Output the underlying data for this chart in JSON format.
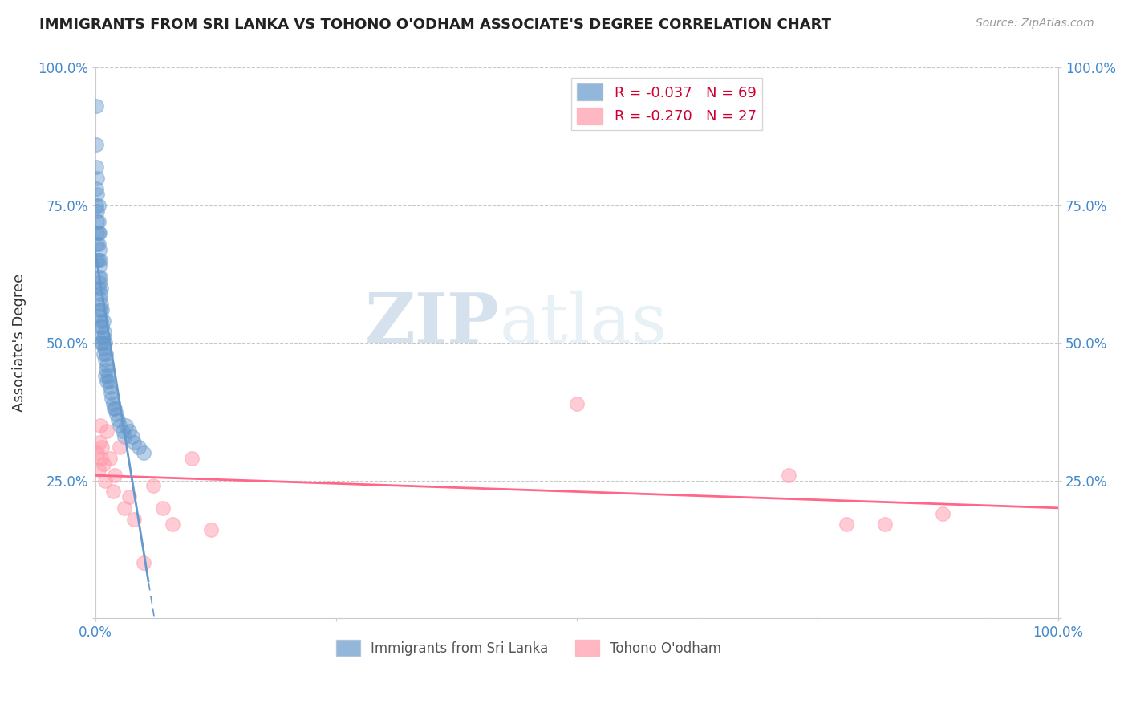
{
  "title": "IMMIGRANTS FROM SRI LANKA VS TOHONO O'ODHAM ASSOCIATE'S DEGREE CORRELATION CHART",
  "source": "Source: ZipAtlas.com",
  "ylabel": "Associate's Degree",
  "xlim": [
    0,
    1.0
  ],
  "ylim": [
    0,
    1.0
  ],
  "xticks": [
    0.0,
    0.25,
    0.5,
    0.75,
    1.0
  ],
  "xtick_labels": [
    "0.0%",
    "",
    "",
    "",
    "100.0%"
  ],
  "yticks": [
    0.0,
    0.25,
    0.5,
    0.75,
    1.0
  ],
  "ytick_labels": [
    "",
    "25.0%",
    "50.0%",
    "75.0%",
    "100.0%"
  ],
  "blue_R": -0.037,
  "blue_N": 69,
  "pink_R": -0.27,
  "pink_N": 27,
  "blue_color": "#6699CC",
  "pink_color": "#FF99AA",
  "blue_label": "Immigrants from Sri Lanka",
  "pink_label": "Tohono O'odham",
  "watermark_zip": "ZIP",
  "watermark_atlas": "atlas",
  "blue_x": [
    0.001,
    0.001,
    0.001,
    0.001,
    0.001,
    0.002,
    0.002,
    0.002,
    0.002,
    0.002,
    0.002,
    0.002,
    0.003,
    0.003,
    0.003,
    0.003,
    0.003,
    0.003,
    0.003,
    0.004,
    0.004,
    0.004,
    0.004,
    0.004,
    0.004,
    0.005,
    0.005,
    0.005,
    0.005,
    0.005,
    0.005,
    0.006,
    0.006,
    0.006,
    0.006,
    0.007,
    0.007,
    0.007,
    0.008,
    0.008,
    0.008,
    0.009,
    0.009,
    0.01,
    0.01,
    0.01,
    0.011,
    0.011,
    0.012,
    0.012,
    0.013,
    0.014,
    0.015,
    0.016,
    0.017,
    0.018,
    0.019,
    0.02,
    0.022,
    0.023,
    0.025,
    0.028,
    0.03,
    0.032,
    0.035,
    0.038,
    0.04,
    0.045,
    0.05
  ],
  "blue_y": [
    0.93,
    0.86,
    0.82,
    0.78,
    0.75,
    0.8,
    0.77,
    0.74,
    0.72,
    0.7,
    0.68,
    0.65,
    0.75,
    0.72,
    0.7,
    0.68,
    0.65,
    0.62,
    0.6,
    0.7,
    0.67,
    0.64,
    0.61,
    0.58,
    0.55,
    0.65,
    0.62,
    0.59,
    0.56,
    0.53,
    0.5,
    0.6,
    0.57,
    0.54,
    0.51,
    0.56,
    0.53,
    0.5,
    0.54,
    0.51,
    0.48,
    0.52,
    0.49,
    0.5,
    0.47,
    0.44,
    0.48,
    0.45,
    0.46,
    0.43,
    0.44,
    0.43,
    0.42,
    0.41,
    0.4,
    0.39,
    0.38,
    0.38,
    0.37,
    0.36,
    0.35,
    0.34,
    0.33,
    0.35,
    0.34,
    0.33,
    0.32,
    0.31,
    0.3
  ],
  "pink_x": [
    0.002,
    0.003,
    0.004,
    0.005,
    0.006,
    0.007,
    0.008,
    0.01,
    0.012,
    0.015,
    0.018,
    0.02,
    0.025,
    0.03,
    0.035,
    0.04,
    0.05,
    0.06,
    0.07,
    0.08,
    0.1,
    0.12,
    0.5,
    0.72,
    0.78,
    0.82,
    0.88
  ],
  "pink_y": [
    0.3,
    0.27,
    0.32,
    0.35,
    0.29,
    0.31,
    0.28,
    0.25,
    0.34,
    0.29,
    0.23,
    0.26,
    0.31,
    0.2,
    0.22,
    0.18,
    0.1,
    0.24,
    0.2,
    0.17,
    0.29,
    0.16,
    0.39,
    0.26,
    0.17,
    0.17,
    0.19
  ]
}
